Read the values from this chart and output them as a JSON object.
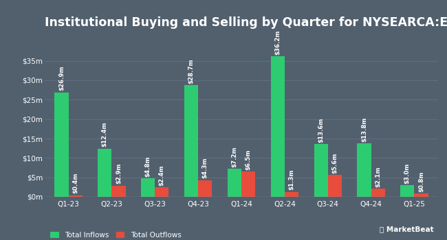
{
  "title": "Institutional Buying and Selling by Quarter for NYSEARCA:EWN",
  "quarters": [
    "Q1-23",
    "Q2-23",
    "Q3-23",
    "Q4-23",
    "Q1-24",
    "Q2-24",
    "Q3-24",
    "Q4-24",
    "Q1-25"
  ],
  "inflows": [
    26.9,
    12.4,
    4.8,
    28.7,
    7.2,
    36.2,
    13.6,
    13.8,
    3.0
  ],
  "outflows": [
    0.4,
    2.9,
    2.4,
    4.3,
    6.5,
    1.3,
    5.6,
    2.1,
    0.8
  ],
  "inflow_labels": [
    "$26.9m",
    "$12.4m",
    "$4.8m",
    "$28.7m",
    "$7.2m",
    "$36.2m",
    "$13.6m",
    "$13.8m",
    "$3.0m"
  ],
  "outflow_labels": [
    "$0.4m",
    "$2.9m",
    "$2.4m",
    "$4.3m",
    "$6.5m",
    "$1.3m",
    "$5.6m",
    "$2.1m",
    "$0.8m"
  ],
  "inflow_color": "#2ecc71",
  "outflow_color": "#e74c3c",
  "bg_color": "#52606e",
  "text_color": "#ffffff",
  "grid_color": "#667080",
  "bar_width": 0.32,
  "ylim": [
    0,
    42
  ],
  "yticks": [
    0,
    5,
    10,
    15,
    20,
    25,
    30,
    35
  ],
  "ytick_labels": [
    "$0m",
    "$5m",
    "$10m",
    "$15m",
    "$20m",
    "$25m",
    "$30m",
    "$35m"
  ],
  "legend_inflow": "Total Inflows",
  "legend_outflow": "Total Outflows",
  "title_fontsize": 12.5,
  "label_fontsize": 6.2,
  "tick_fontsize": 7.5,
  "legend_fontsize": 7.5
}
